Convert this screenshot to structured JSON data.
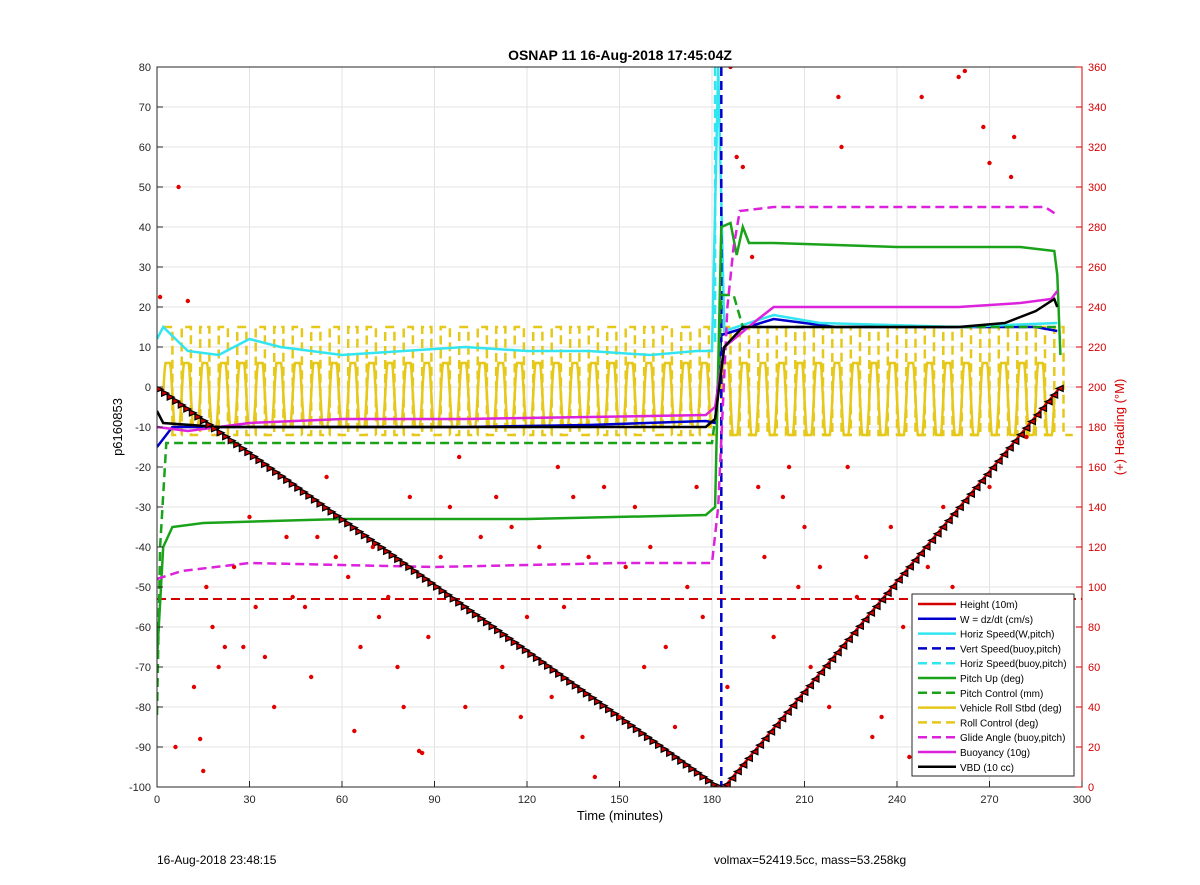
{
  "chart_data": {
    "type": "line",
    "title": "OSNAP 11 16-Aug-2018 17:45:04Z",
    "xlabel": "Time (minutes)",
    "ylabel": "p6160853",
    "y2label": "(+) Heading (°M)",
    "xlim": [
      0,
      300
    ],
    "ylim": [
      -100,
      80
    ],
    "y2lim": [
      0,
      360
    ],
    "xticks": [
      "0",
      "30",
      "60",
      "90",
      "120",
      "150",
      "180",
      "210",
      "240",
      "270",
      "300"
    ],
    "yticks": [
      "-100",
      "-90",
      "-80",
      "-70",
      "-60",
      "-50",
      "-40",
      "-30",
      "-20",
      "-10",
      "0",
      "10",
      "20",
      "30",
      "40",
      "50",
      "60",
      "70",
      "80"
    ],
    "y2ticks": [
      "0",
      "20",
      "40",
      "60",
      "80",
      "100",
      "120",
      "140",
      "160",
      "180",
      "200",
      "220",
      "240",
      "260",
      "280",
      "300",
      "320",
      "340",
      "360"
    ],
    "grid": true,
    "legend_position": "bottom-right",
    "colors": {
      "height": "#d40000",
      "w": "#0000cc",
      "horiz": "#33e5f0",
      "pitch": "#1aa31a",
      "roll": "#e5c81a",
      "glide": "#dd22dd",
      "buoy": "#dd22dd",
      "vbd": "#000000",
      "right_axis": "#d40000"
    },
    "series": [
      {
        "name": "Height (10m)",
        "style": "solid",
        "color": "#d40000",
        "points": [
          [
            0,
            0
          ],
          [
            182,
            -100
          ],
          [
            184,
            -100
          ],
          [
            293,
            0
          ]
        ]
      },
      {
        "name": "W = dz/dt (cm/s)",
        "style": "solid",
        "color": "#0000cc",
        "points": [
          [
            0,
            -15
          ],
          [
            5,
            -10
          ],
          [
            20,
            -10
          ],
          [
            60,
            -10
          ],
          [
            100,
            -10
          ],
          [
            140,
            -9.5
          ],
          [
            178,
            -8.5
          ],
          [
            181,
            -9
          ],
          [
            183,
            13
          ],
          [
            200,
            17
          ],
          [
            220,
            15
          ],
          [
            260,
            15
          ],
          [
            285,
            15
          ],
          [
            292,
            14
          ]
        ]
      },
      {
        "name": "Horiz Speed(W,pitch)",
        "style": "solid",
        "color": "#33e5f0",
        "points": [
          [
            0,
            12
          ],
          [
            2,
            15
          ],
          [
            10,
            9
          ],
          [
            20,
            8
          ],
          [
            30,
            12
          ],
          [
            40,
            10
          ],
          [
            60,
            8
          ],
          [
            80,
            9
          ],
          [
            100,
            10
          ],
          [
            120,
            9
          ],
          [
            140,
            9
          ],
          [
            160,
            8
          ],
          [
            175,
            9
          ],
          [
            180,
            9
          ],
          [
            182,
            80
          ],
          [
            184,
            14
          ],
          [
            200,
            18
          ],
          [
            215,
            16
          ],
          [
            260,
            15
          ],
          [
            292,
            16
          ]
        ]
      },
      {
        "name": "Vert Speed(buoy,pitch)",
        "style": "dash",
        "color": "#0000cc",
        "points": [
          [
            183,
            80
          ],
          [
            183,
            -100
          ]
        ]
      },
      {
        "name": "Horiz Speed(buoy,pitch)",
        "style": "dash",
        "color": "#33e5f0",
        "points": [
          [
            181,
            80
          ],
          [
            181,
            10
          ]
        ]
      },
      {
        "name": "Pitch Up (deg)",
        "style": "solid",
        "color": "#1aa31a",
        "points": [
          [
            0,
            -68
          ],
          [
            2,
            -40
          ],
          [
            5,
            -35
          ],
          [
            15,
            -34
          ],
          [
            60,
            -33
          ],
          [
            120,
            -33
          ],
          [
            178,
            -32
          ],
          [
            181,
            -30
          ],
          [
            183,
            40
          ],
          [
            186,
            41
          ],
          [
            188,
            33
          ],
          [
            190,
            40
          ],
          [
            192,
            36
          ],
          [
            200,
            36
          ],
          [
            240,
            35
          ],
          [
            280,
            35
          ],
          [
            291,
            34
          ],
          [
            292,
            28
          ],
          [
            293,
            8
          ]
        ]
      },
      {
        "name": "Pitch Control (mm)",
        "style": "dash",
        "color": "#1aa31a",
        "points": [
          [
            0,
            -82
          ],
          [
            1,
            -40
          ],
          [
            3,
            -14
          ],
          [
            180,
            -14
          ],
          [
            182,
            -2
          ],
          [
            183,
            23
          ],
          [
            187,
            23
          ],
          [
            190,
            15
          ],
          [
            292,
            15
          ]
        ]
      },
      {
        "name": "Vehicle Roll Stbd (deg)",
        "style": "solid",
        "color": "#e5c81a",
        "points": []
      },
      {
        "name": "Roll Control (deg)",
        "style": "dash",
        "color": "#e5c81a",
        "points": []
      },
      {
        "name": "Glide Angle (buoy,pitch)",
        "style": "dash",
        "color": "#dd22dd",
        "points": [
          [
            0,
            -48
          ],
          [
            8,
            -46
          ],
          [
            30,
            -44
          ],
          [
            90,
            -45
          ],
          [
            150,
            -44
          ],
          [
            180,
            -44
          ],
          [
            182,
            -30
          ],
          [
            185,
            20
          ],
          [
            187,
            35
          ],
          [
            189,
            44
          ],
          [
            200,
            45
          ],
          [
            260,
            45
          ],
          [
            288,
            45
          ],
          [
            292,
            43
          ]
        ]
      },
      {
        "name": "Buoyancy (10g)",
        "style": "solid",
        "color": "#dd22dd",
        "points": [
          [
            0,
            -10
          ],
          [
            10,
            -11
          ],
          [
            30,
            -9
          ],
          [
            60,
            -8
          ],
          [
            100,
            -8
          ],
          [
            140,
            -7.5
          ],
          [
            178,
            -7
          ],
          [
            181,
            -5
          ],
          [
            184,
            10
          ],
          [
            195,
            17
          ],
          [
            200,
            20
          ],
          [
            260,
            20
          ],
          [
            280,
            21
          ],
          [
            290,
            22
          ],
          [
            292,
            24
          ]
        ]
      },
      {
        "name": "VBD (10 cc)",
        "style": "solid",
        "color": "#000000",
        "points": [
          [
            0,
            -6
          ],
          [
            2,
            -9
          ],
          [
            20,
            -10
          ],
          [
            100,
            -10
          ],
          [
            178,
            -10
          ],
          [
            181,
            -8
          ],
          [
            184,
            10
          ],
          [
            190,
            15
          ],
          [
            200,
            15
          ],
          [
            260,
            15
          ],
          [
            275,
            16
          ],
          [
            285,
            19
          ],
          [
            291,
            22
          ],
          [
            292,
            20
          ]
        ]
      }
    ],
    "roll_oscillation": {
      "center": -2,
      "amplitude": 8,
      "period": 6,
      "x_start": 2,
      "x_end": 180,
      "x2_start": 183,
      "x2_end": 291,
      "amplitude2": 9
    },
    "roll_control_levels": {
      "high": 15,
      "low": -12
    },
    "dashed_red_level": -53,
    "heading_points_deg": [
      [
        1,
        245
      ],
      [
        7,
        300
      ],
      [
        10,
        243
      ],
      [
        14,
        24
      ],
      [
        15,
        8
      ],
      [
        6,
        20
      ],
      [
        12,
        50
      ],
      [
        16,
        100
      ],
      [
        18,
        80
      ],
      [
        20,
        60
      ],
      [
        22,
        70
      ],
      [
        25,
        110
      ],
      [
        28,
        70
      ],
      [
        30,
        135
      ],
      [
        32,
        90
      ],
      [
        35,
        65
      ],
      [
        38,
        40
      ],
      [
        42,
        125
      ],
      [
        44,
        95
      ],
      [
        48,
        90
      ],
      [
        50,
        55
      ],
      [
        52,
        125
      ],
      [
        55,
        155
      ],
      [
        58,
        115
      ],
      [
        62,
        105
      ],
      [
        64,
        28
      ],
      [
        66,
        70
      ],
      [
        70,
        120
      ],
      [
        72,
        85
      ],
      [
        75,
        95
      ],
      [
        78,
        60
      ],
      [
        80,
        40
      ],
      [
        82,
        145
      ],
      [
        85,
        18
      ],
      [
        86,
        17
      ],
      [
        88,
        75
      ],
      [
        92,
        115
      ],
      [
        95,
        140
      ],
      [
        98,
        165
      ],
      [
        100,
        40
      ],
      [
        105,
        125
      ],
      [
        110,
        145
      ],
      [
        112,
        60
      ],
      [
        115,
        130
      ],
      [
        118,
        35
      ],
      [
        120,
        85
      ],
      [
        124,
        120
      ],
      [
        128,
        45
      ],
      [
        130,
        160
      ],
      [
        132,
        90
      ],
      [
        135,
        145
      ],
      [
        138,
        25
      ],
      [
        140,
        115
      ],
      [
        142,
        5
      ],
      [
        145,
        150
      ],
      [
        150,
        35
      ],
      [
        152,
        110
      ],
      [
        155,
        140
      ],
      [
        158,
        60
      ],
      [
        160,
        120
      ],
      [
        165,
        70
      ],
      [
        168,
        30
      ],
      [
        172,
        100
      ],
      [
        175,
        150
      ],
      [
        177,
        85
      ],
      [
        185,
        50
      ],
      [
        186,
        360
      ],
      [
        188,
        315
      ],
      [
        190,
        310
      ],
      [
        193,
        265
      ],
      [
        195,
        150
      ],
      [
        197,
        115
      ],
      [
        200,
        75
      ],
      [
        203,
        145
      ],
      [
        205,
        160
      ],
      [
        208,
        100
      ],
      [
        210,
        130
      ],
      [
        212,
        60
      ],
      [
        215,
        110
      ],
      [
        218,
        40
      ],
      [
        221,
        345
      ],
      [
        222,
        320
      ],
      [
        224,
        160
      ],
      [
        227,
        95
      ],
      [
        230,
        115
      ],
      [
        232,
        25
      ],
      [
        235,
        35
      ],
      [
        238,
        130
      ],
      [
        242,
        80
      ],
      [
        244,
        15
      ],
      [
        248,
        345
      ],
      [
        250,
        110
      ],
      [
        252,
        35
      ],
      [
        255,
        140
      ],
      [
        258,
        100
      ],
      [
        260,
        355
      ],
      [
        262,
        358
      ],
      [
        264,
        60
      ],
      [
        268,
        330
      ],
      [
        270,
        312
      ],
      [
        272,
        90
      ],
      [
        275,
        10
      ],
      [
        277,
        305
      ],
      [
        278,
        325
      ],
      [
        280,
        60
      ],
      [
        282,
        25
      ],
      [
        285,
        50
      ],
      [
        287,
        20
      ],
      [
        290,
        40
      ],
      [
        292,
        95
      ],
      [
        282,
        175
      ],
      [
        270,
        150
      ]
    ],
    "heading_points_deg_labels": [],
    "tick_marks_note": ""
  },
  "legend": [
    {
      "label": "Height (10m)",
      "color": "#d40000",
      "style": "solid"
    },
    {
      "label": "W = dz/dt (cm/s)",
      "color": "#0000cc",
      "style": "solid"
    },
    {
      "label": "Horiz Speed(W,pitch)",
      "color": "#33e5f0",
      "style": "solid"
    },
    {
      "label": "Vert Speed(buoy,pitch)",
      "color": "#0000cc",
      "style": "dash"
    },
    {
      "label": "Horiz Speed(buoy,pitch)",
      "color": "#33e5f0",
      "style": "dash"
    },
    {
      "label": "Pitch Up (deg)",
      "color": "#1aa31a",
      "style": "solid"
    },
    {
      "label": "Pitch Control (mm)",
      "color": "#1aa31a",
      "style": "dash"
    },
    {
      "label": "Vehicle Roll Stbd (deg)",
      "color": "#e5c81a",
      "style": "solid"
    },
    {
      "label": "Roll Control (deg)",
      "color": "#e5c81a",
      "style": "dash"
    },
    {
      "label": "Glide Angle (buoy,pitch)",
      "color": "#dd22dd",
      "style": "dash"
    },
    {
      "label": "Buoyancy (10g)",
      "color": "#dd22dd",
      "style": "solid"
    },
    {
      "label": "VBD (10 cc)",
      "color": "#000000",
      "style": "solid"
    }
  ],
  "footer": {
    "timestamp": "16-Aug-2018 23:48:15",
    "info": "volmax=52419.5cc, mass=53.258kg"
  }
}
